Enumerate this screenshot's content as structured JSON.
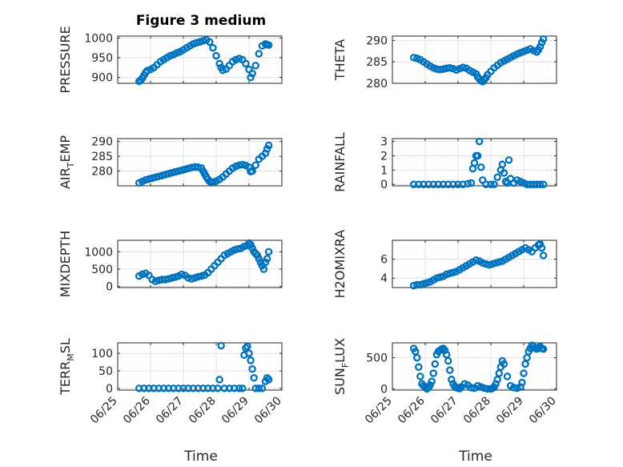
{
  "figure": {
    "title": "Figure 3 medium",
    "xlabel": "Time",
    "date_ticks": [
      "06/25",
      "06/26",
      "06/27",
      "06/28",
      "06/29",
      "06/30"
    ]
  },
  "colors": {
    "marker": "#0072BD",
    "axes": "#262626",
    "grid": "#dcdcdc",
    "minor_grid": "#efefef"
  },
  "chart_data": [
    {
      "type": "scatter",
      "ylabel": "PRESSURE",
      "ylabel_sub": "",
      "ylabel_sub_after": "",
      "ylim": [
        885,
        1005
      ],
      "yticks": [
        900,
        950,
        1000
      ],
      "x": [
        25.65,
        25.7,
        25.75,
        25.8,
        25.85,
        25.9,
        26.0,
        26.1,
        26.2,
        26.3,
        26.4,
        26.5,
        26.6,
        26.7,
        26.8,
        26.9,
        27.0,
        27.1,
        27.2,
        27.3,
        27.4,
        27.5,
        27.6,
        27.7,
        27.8,
        27.9,
        28.0,
        28.1,
        28.15,
        28.2,
        28.3,
        28.4,
        28.5,
        28.6,
        28.7,
        28.8,
        28.9,
        29.0,
        29.05,
        29.1,
        29.2,
        29.3,
        29.4,
        29.5,
        29.55,
        29.6
      ],
      "y": [
        890,
        893,
        898,
        905,
        912,
        917,
        920,
        925,
        932,
        940,
        945,
        950,
        955,
        958,
        962,
        965,
        970,
        975,
        980,
        985,
        988,
        990,
        993,
        995,
        990,
        975,
        955,
        935,
        925,
        918,
        921,
        930,
        940,
        945,
        948,
        945,
        935,
        920,
        900,
        910,
        930,
        960,
        980,
        985,
        983,
        982
      ]
    },
    {
      "type": "scatter",
      "ylabel": "THETA",
      "ylabel_sub": "",
      "ylabel_sub_after": "",
      "ylim": [
        280,
        291
      ],
      "yticks": [
        280,
        285,
        290
      ],
      "x": [
        25.65,
        25.75,
        25.85,
        25.95,
        26.05,
        26.15,
        26.25,
        26.35,
        26.45,
        26.55,
        26.65,
        26.75,
        26.85,
        26.95,
        27.05,
        27.15,
        27.25,
        27.35,
        27.45,
        27.55,
        27.6,
        27.65,
        27.7,
        27.75,
        27.8,
        27.85,
        27.9,
        28.0,
        28.1,
        28.2,
        28.3,
        28.4,
        28.5,
        28.6,
        28.7,
        28.8,
        28.9,
        29.0,
        29.1,
        29.2,
        29.3,
        29.4,
        29.45,
        29.5,
        29.55,
        29.6
      ],
      "y": [
        286,
        285.8,
        285.5,
        285,
        284.5,
        284,
        283.6,
        283.3,
        283.2,
        283.3,
        283.5,
        283.6,
        283.4,
        283.1,
        283.4,
        283.7,
        283.5,
        283,
        282.6,
        282.2,
        281.5,
        281,
        280.6,
        280.4,
        280.8,
        281.3,
        282,
        282.8,
        283.6,
        284.2,
        284.8,
        285.2,
        285.6,
        286,
        286.4,
        286.8,
        287.1,
        287.4,
        287.7,
        288,
        287.6,
        287.3,
        287.8,
        288.5,
        289.5,
        290.3
      ]
    },
    {
      "type": "scatter",
      "ylabel": "AIR",
      "ylabel_sub": "T",
      "ylabel_sub_after": "EMP",
      "ylim": [
        275,
        291
      ],
      "yticks": [
        280,
        285,
        290
      ],
      "x": [
        25.65,
        25.75,
        25.85,
        25.95,
        26.05,
        26.15,
        26.25,
        26.35,
        26.45,
        26.55,
        26.65,
        26.75,
        26.85,
        26.95,
        27.05,
        27.15,
        27.25,
        27.35,
        27.45,
        27.55,
        27.6,
        27.65,
        27.7,
        27.75,
        27.8,
        27.85,
        27.9,
        28.0,
        28.1,
        28.2,
        28.3,
        28.4,
        28.5,
        28.6,
        28.7,
        28.8,
        28.9,
        29.0,
        29.05,
        29.1,
        29.2,
        29.3,
        29.4,
        29.5,
        29.55,
        29.6
      ],
      "y": [
        276,
        276.5,
        277,
        277.3,
        277.6,
        277.9,
        278.2,
        278.5,
        278.8,
        279.1,
        279.4,
        279.7,
        280,
        280.3,
        280.6,
        280.9,
        281.2,
        281.4,
        281.3,
        281,
        280,
        279,
        278,
        277.2,
        276.5,
        276.3,
        276.2,
        276.6,
        277.2,
        278,
        279,
        280,
        281,
        281.6,
        282,
        282.2,
        281.9,
        281.3,
        279.8,
        280,
        282,
        284,
        285,
        286,
        287.5,
        288.7
      ]
    },
    {
      "type": "scatter",
      "ylabel": "RAINFALL",
      "ylabel_sub": "",
      "ylabel_sub_after": "",
      "ylim": [
        -0.1,
        3.2
      ],
      "yticks": [
        0,
        1,
        2,
        3
      ],
      "x": [
        25.65,
        25.8,
        25.95,
        26.1,
        26.25,
        26.4,
        26.55,
        26.7,
        26.85,
        27.0,
        27.15,
        27.3,
        27.4,
        27.45,
        27.5,
        27.55,
        27.6,
        27.65,
        27.7,
        27.75,
        27.85,
        28.0,
        28.1,
        28.2,
        28.3,
        28.35,
        28.4,
        28.45,
        28.5,
        28.55,
        28.6,
        28.7,
        28.8,
        28.9,
        29.0,
        29.1,
        29.2,
        29.3,
        29.4,
        29.5,
        29.6
      ],
      "y": [
        0,
        0,
        0,
        0,
        0,
        0,
        0,
        0,
        0,
        0,
        0,
        0.05,
        0.1,
        1.1,
        1.5,
        2,
        2,
        3,
        1.2,
        0.3,
        0,
        0,
        0,
        0.5,
        1,
        1.4,
        0.8,
        0.2,
        0.1,
        1.7,
        0.4,
        0.1,
        0.3,
        0.2,
        0.1,
        0,
        0,
        0,
        0,
        0,
        0
      ]
    },
    {
      "type": "scatter",
      "ylabel": "MIXDEPTH",
      "ylabel_sub": "",
      "ylabel_sub_after": "",
      "ylim": [
        -30,
        1330
      ],
      "yticks": [
        0,
        500,
        1000
      ],
      "x": [
        25.65,
        25.75,
        25.85,
        25.95,
        26.05,
        26.15,
        26.25,
        26.35,
        26.45,
        26.55,
        26.65,
        26.75,
        26.85,
        26.95,
        27.05,
        27.15,
        27.25,
        27.35,
        27.45,
        27.55,
        27.65,
        27.75,
        27.85,
        27.95,
        28.05,
        28.15,
        28.25,
        28.35,
        28.45,
        28.55,
        28.65,
        28.75,
        28.85,
        28.95,
        29.0,
        29.05,
        29.1,
        29.15,
        29.2,
        29.25,
        29.3,
        29.35,
        29.4,
        29.45,
        29.5,
        29.55,
        29.6
      ],
      "y": [
        300,
        350,
        380,
        320,
        200,
        150,
        180,
        200,
        200,
        220,
        250,
        270,
        300,
        350,
        320,
        250,
        220,
        250,
        280,
        300,
        330,
        400,
        500,
        600,
        700,
        800,
        900,
        950,
        1000,
        1050,
        1080,
        1100,
        1150,
        1180,
        1250,
        1200,
        1100,
        1000,
        950,
        900,
        800,
        700,
        600,
        500,
        700,
        800,
        1000
      ]
    },
    {
      "type": "scatter",
      "ylabel": "H2OMIXRA",
      "ylabel_sub": "",
      "ylabel_sub_after": "",
      "ylim": [
        3,
        8
      ],
      "yticks": [
        4,
        6
      ],
      "x": [
        25.65,
        25.75,
        25.85,
        25.95,
        26.05,
        26.15,
        26.25,
        26.35,
        26.45,
        26.55,
        26.65,
        26.75,
        26.85,
        26.95,
        27.05,
        27.15,
        27.25,
        27.35,
        27.45,
        27.55,
        27.65,
        27.75,
        27.85,
        27.95,
        28.05,
        28.15,
        28.25,
        28.35,
        28.45,
        28.55,
        28.65,
        28.75,
        28.85,
        28.95,
        29.05,
        29.15,
        29.25,
        29.35,
        29.45,
        29.5,
        29.55,
        29.6
      ],
      "y": [
        3.2,
        3.3,
        3.3,
        3.4,
        3.5,
        3.6,
        3.8,
        4,
        4.1,
        4.2,
        4.4,
        4.5,
        4.6,
        4.7,
        4.9,
        5.1,
        5.3,
        5.5,
        5.7,
        5.9,
        5.8,
        5.6,
        5.5,
        5.4,
        5.5,
        5.6,
        5.7,
        5.8,
        6,
        6.2,
        6.4,
        6.6,
        6.8,
        7,
        7.2,
        7,
        6.8,
        7.2,
        7.5,
        7.6,
        7.2,
        6.4
      ]
    },
    {
      "type": "scatter",
      "ylabel": "TERR",
      "ylabel_sub": "M",
      "ylabel_sub_after": "SL",
      "ylim": [
        -5,
        130
      ],
      "yticks": [
        0,
        50,
        100
      ],
      "x": [
        25.65,
        25.8,
        25.95,
        26.1,
        26.25,
        26.4,
        26.55,
        26.7,
        26.85,
        27.0,
        27.15,
        27.3,
        27.45,
        27.6,
        27.75,
        27.9,
        28.05,
        28.1,
        28.15,
        28.25,
        28.4,
        28.55,
        28.7,
        28.8,
        28.85,
        28.9,
        28.95,
        29.0,
        29.05,
        29.1,
        29.15,
        29.2,
        29.3,
        29.4,
        29.5,
        29.55,
        29.6
      ],
      "y": [
        0,
        0,
        0,
        0,
        0,
        0,
        0,
        0,
        0,
        0,
        0,
        0,
        0,
        0,
        0,
        0,
        0,
        25,
        122,
        0,
        0,
        0,
        0,
        0,
        95,
        115,
        120,
        100,
        80,
        55,
        30,
        0,
        0,
        0,
        20,
        30,
        25
      ]
    },
    {
      "type": "scatter",
      "ylabel": "SUN",
      "ylabel_sub": "F",
      "ylabel_sub_after": "LUX",
      "ylim": [
        -20,
        740
      ],
      "yticks": [
        0,
        500
      ],
      "x": [
        25.65,
        25.7,
        25.75,
        25.8,
        25.85,
        25.9,
        25.95,
        26.0,
        26.05,
        26.1,
        26.15,
        26.2,
        26.25,
        26.3,
        26.35,
        26.4,
        26.45,
        26.5,
        26.55,
        26.6,
        26.65,
        26.7,
        26.75,
        26.8,
        26.85,
        26.9,
        26.95,
        27.0,
        27.05,
        27.1,
        27.2,
        27.3,
        27.4,
        27.5,
        27.6,
        27.7,
        27.8,
        27.9,
        28.0,
        28.05,
        28.1,
        28.15,
        28.2,
        28.25,
        28.3,
        28.35,
        28.4,
        28.5,
        28.6,
        28.7,
        28.8,
        28.9,
        28.95,
        29.0,
        29.05,
        29.1,
        29.15,
        29.2,
        29.25,
        29.3,
        29.35,
        29.4,
        29.45,
        29.5,
        29.55,
        29.6
      ],
      "y": [
        650,
        600,
        500,
        350,
        200,
        80,
        50,
        30,
        0,
        20,
        60,
        120,
        250,
        400,
        550,
        600,
        620,
        640,
        650,
        620,
        550,
        450,
        300,
        150,
        80,
        40,
        20,
        10,
        5,
        30,
        80,
        60,
        20,
        10,
        50,
        30,
        10,
        0,
        0,
        10,
        30,
        80,
        150,
        250,
        350,
        450,
        400,
        200,
        50,
        20,
        10,
        30,
        100,
        250,
        400,
        500,
        600,
        650,
        700,
        680,
        650,
        640,
        660,
        680,
        650,
        640
      ]
    }
  ]
}
